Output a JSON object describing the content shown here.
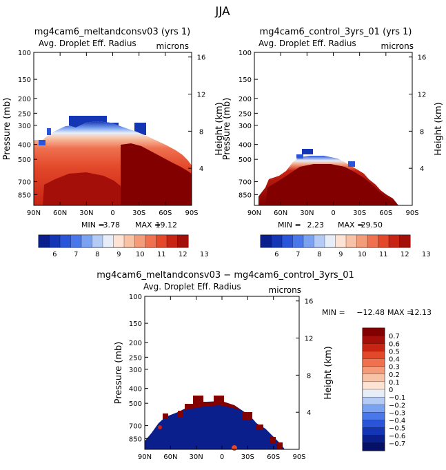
{
  "page": {
    "title": "JJA"
  },
  "colors": {
    "blues": [
      "#0a1e8c",
      "#1436b4",
      "#2a55d8",
      "#4a78ea",
      "#7aa2f0",
      "#b4cbf5"
    ],
    "neutral": "#e8eef7",
    "reds": [
      "#fde3d4",
      "#f8c2a6",
      "#f49c7a",
      "#ef7150",
      "#e3482a",
      "#c82414",
      "#a50f0a",
      "#820000"
    ]
  },
  "chart_data": [
    {
      "type": "heatmap",
      "title": "mg4cam6_meltandconsv03 (yrs 1)",
      "subtitle_left": "Avg. Droplet Eff. Radius",
      "subtitle_right": "microns",
      "ylabel": "Pressure (mb)",
      "ylabel_right": "Height (km)",
      "x_ticks": [
        "90N",
        "60N",
        "30N",
        "0",
        "30S",
        "60S",
        "90S"
      ],
      "y_ticks": [
        "100",
        "150",
        "200",
        "250",
        "300",
        "400",
        "500",
        "700",
        "850"
      ],
      "y_right_ticks": [
        "16",
        "12",
        "8",
        "4"
      ],
      "stats": {
        "min_label": "MIN =",
        "min": "3.78",
        "max_label": "MAX =",
        "max": "19.12"
      },
      "colorbar": {
        "orientation": "horizontal",
        "labels": [
          "6",
          "7",
          "8",
          "9",
          "10",
          "11",
          "12",
          "13"
        ]
      }
    },
    {
      "type": "heatmap",
      "title": "mg4cam6_control_3yrs_01 (yrs 1)",
      "subtitle_left": "Avg. Droplet Eff. Radius",
      "subtitle_right": "microns",
      "ylabel": "Pressure (mb)",
      "ylabel_right": "Height (km)",
      "x_ticks": [
        "90N",
        "60N",
        "30N",
        "0",
        "30S",
        "60S",
        "90S"
      ],
      "y_ticks": [
        "100",
        "150",
        "200",
        "250",
        "300",
        "400",
        "500",
        "700",
        "850"
      ],
      "y_right_ticks": [
        "16",
        "12",
        "8",
        "4"
      ],
      "stats": {
        "min_label": "MIN =",
        "min": "2.23",
        "max_label": "MAX =",
        "max": "29.50"
      },
      "colorbar": {
        "orientation": "horizontal",
        "labels": [
          "6",
          "7",
          "8",
          "9",
          "10",
          "11",
          "12",
          "13"
        ]
      }
    },
    {
      "type": "heatmap",
      "title": "mg4cam6_meltandconsv03 − mg4cam6_control_3yrs_01",
      "subtitle_left": "Avg. Droplet Eff. Radius",
      "subtitle_right": "microns",
      "ylabel": "Pressure (mb)",
      "ylabel_right": "Height (km)",
      "x_ticks": [
        "90N",
        "60N",
        "30N",
        "0",
        "30S",
        "60S",
        "90S"
      ],
      "y_ticks": [
        "100",
        "150",
        "200",
        "250",
        "300",
        "400",
        "500",
        "700",
        "850"
      ],
      "y_right_ticks": [
        "16",
        "12",
        "8",
        "4"
      ],
      "stats": {
        "min_label": "MIN =",
        "min": "−12.48",
        "max_label": "MAX =",
        "max": "12.13"
      },
      "colorbar": {
        "orientation": "vertical",
        "labels": [
          "0.7",
          "0.6",
          "0.5",
          "0.4",
          "0.3",
          "0.2",
          "0.1",
          "0",
          "−0.1",
          "−0.2",
          "−0.3",
          "−0.4",
          "−0.5",
          "−0.6",
          "−0.7"
        ]
      }
    }
  ]
}
